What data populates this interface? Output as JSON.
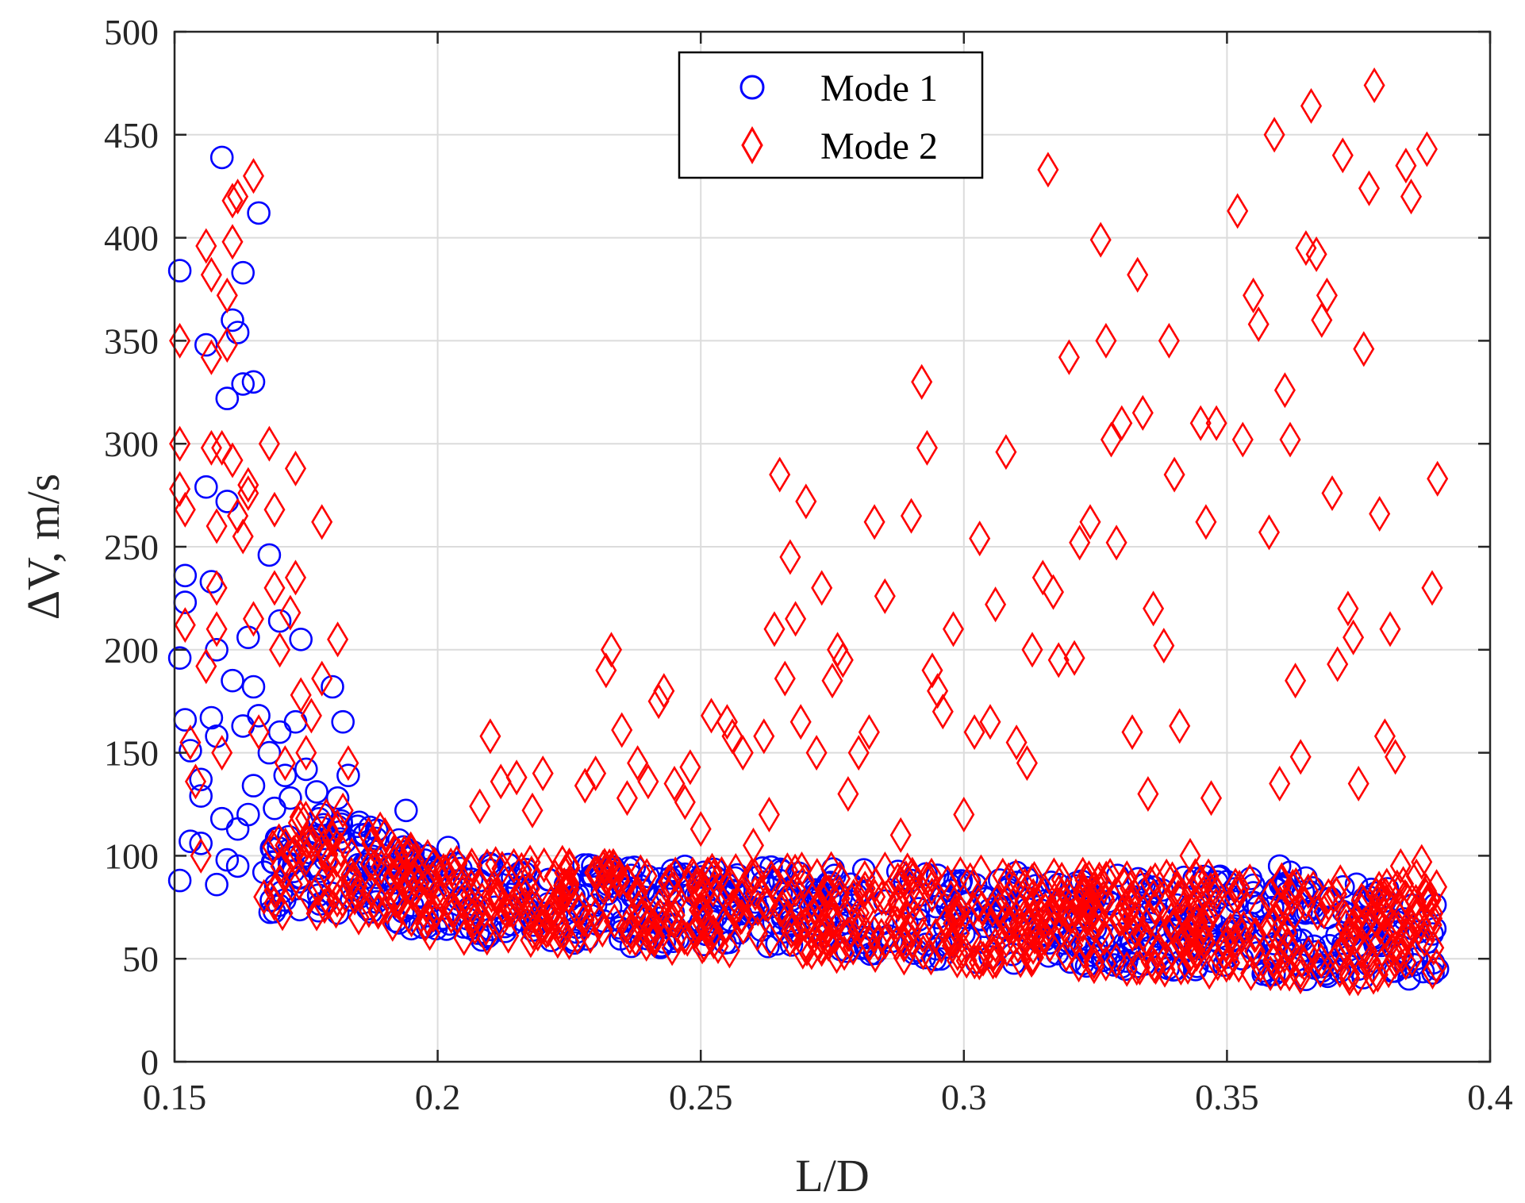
{
  "chart_data": {
    "type": "scatter",
    "title": "",
    "xlabel": "L/D",
    "ylabel": "ΔV, m/s",
    "xlim": [
      0.15,
      0.4
    ],
    "ylim": [
      0,
      500
    ],
    "xticks": [
      "0.15",
      "0.2",
      "0.25",
      "0.3",
      "0.35",
      "0.4"
    ],
    "yticks": [
      "0",
      "50",
      "100",
      "150",
      "200",
      "250",
      "300",
      "350",
      "400",
      "450",
      "500"
    ],
    "grid": true,
    "legend_position": "top-center",
    "series": [
      {
        "name": "Mode 1",
        "marker": "circle",
        "color": "#0000ff",
        "points": [
          [
            0.151,
            384
          ],
          [
            0.151,
            196
          ],
          [
            0.151,
            88
          ],
          [
            0.152,
            236
          ],
          [
            0.152,
            223
          ],
          [
            0.152,
            166
          ],
          [
            0.153,
            151
          ],
          [
            0.153,
            107
          ],
          [
            0.155,
            106
          ],
          [
            0.155,
            137
          ],
          [
            0.155,
            129
          ],
          [
            0.156,
            348
          ],
          [
            0.156,
            279
          ],
          [
            0.157,
            167
          ],
          [
            0.157,
            233
          ],
          [
            0.158,
            200
          ],
          [
            0.158,
            158
          ],
          [
            0.158,
            86
          ],
          [
            0.159,
            439
          ],
          [
            0.159,
            118
          ],
          [
            0.16,
            322
          ],
          [
            0.16,
            272
          ],
          [
            0.16,
            98
          ],
          [
            0.161,
            360
          ],
          [
            0.161,
            185
          ],
          [
            0.162,
            354
          ],
          [
            0.162,
            113
          ],
          [
            0.162,
            95
          ],
          [
            0.163,
            383
          ],
          [
            0.163,
            329
          ],
          [
            0.163,
            163
          ],
          [
            0.164,
            206
          ],
          [
            0.164,
            120
          ],
          [
            0.165,
            330
          ],
          [
            0.165,
            182
          ],
          [
            0.165,
            134
          ],
          [
            0.166,
            412
          ],
          [
            0.166,
            168
          ],
          [
            0.167,
            92
          ],
          [
            0.168,
            246
          ],
          [
            0.168,
            150
          ],
          [
            0.169,
            123
          ],
          [
            0.17,
            214
          ],
          [
            0.17,
            160
          ],
          [
            0.171,
            139
          ],
          [
            0.172,
            128
          ],
          [
            0.173,
            165
          ],
          [
            0.174,
            205
          ],
          [
            0.175,
            142
          ],
          [
            0.175,
            100
          ],
          [
            0.176,
            95
          ],
          [
            0.177,
            131
          ],
          [
            0.178,
            120
          ],
          [
            0.179,
            105
          ],
          [
            0.179,
            78
          ],
          [
            0.18,
            182
          ],
          [
            0.181,
            128
          ],
          [
            0.182,
            165
          ],
          [
            0.183,
            139
          ],
          [
            0.184,
            88
          ],
          [
            0.186,
            110
          ],
          [
            0.188,
            96
          ],
          [
            0.19,
            100
          ],
          [
            0.192,
            90
          ],
          [
            0.194,
            122
          ],
          [
            0.196,
            88
          ],
          [
            0.198,
            100
          ],
          [
            0.2,
            95
          ],
          [
            0.202,
            104
          ],
          [
            0.205,
            80
          ],
          [
            0.208,
            88
          ],
          [
            0.21,
            93
          ],
          [
            0.215,
            84
          ],
          [
            0.22,
            72
          ],
          [
            0.225,
            88
          ],
          [
            0.23,
            76
          ],
          [
            0.235,
            68
          ],
          [
            0.24,
            90
          ],
          [
            0.245,
            66
          ],
          [
            0.25,
            80
          ],
          [
            0.255,
            86
          ],
          [
            0.26,
            72
          ],
          [
            0.265,
            88
          ],
          [
            0.27,
            68
          ],
          [
            0.275,
            85
          ],
          [
            0.28,
            66
          ],
          [
            0.285,
            78
          ],
          [
            0.29,
            88
          ],
          [
            0.295,
            70
          ],
          [
            0.3,
            62
          ],
          [
            0.305,
            74
          ],
          [
            0.31,
            87
          ],
          [
            0.315,
            62
          ],
          [
            0.318,
            86
          ],
          [
            0.32,
            70
          ],
          [
            0.325,
            80
          ],
          [
            0.33,
            62
          ],
          [
            0.335,
            84
          ],
          [
            0.34,
            66
          ],
          [
            0.345,
            56
          ],
          [
            0.35,
            63
          ],
          [
            0.355,
            82
          ],
          [
            0.358,
            42
          ],
          [
            0.36,
            95
          ],
          [
            0.362,
            92
          ],
          [
            0.365,
            40
          ],
          [
            0.368,
            44
          ],
          [
            0.37,
            48
          ],
          [
            0.372,
            55
          ],
          [
            0.375,
            45
          ],
          [
            0.378,
            60
          ],
          [
            0.38,
            78
          ],
          [
            0.382,
            44
          ],
          [
            0.384,
            46
          ],
          [
            0.386,
            50
          ],
          [
            0.388,
            58
          ],
          [
            0.389,
            62
          ],
          [
            0.39,
            45
          ]
        ]
      },
      {
        "name": "Mode 2",
        "marker": "diamond",
        "color": "#ff0000",
        "points": [
          [
            0.151,
            350
          ],
          [
            0.151,
            300
          ],
          [
            0.151,
            278
          ],
          [
            0.152,
            268
          ],
          [
            0.152,
            212
          ],
          [
            0.153,
            155
          ],
          [
            0.154,
            136
          ],
          [
            0.155,
            100
          ],
          [
            0.156,
            192
          ],
          [
            0.156,
            396
          ],
          [
            0.157,
            382
          ],
          [
            0.157,
            342
          ],
          [
            0.157,
            298
          ],
          [
            0.158,
            260
          ],
          [
            0.158,
            230
          ],
          [
            0.158,
            210
          ],
          [
            0.159,
            298
          ],
          [
            0.159,
            150
          ],
          [
            0.16,
            372
          ],
          [
            0.16,
            348
          ],
          [
            0.161,
            418
          ],
          [
            0.161,
            398
          ],
          [
            0.161,
            292
          ],
          [
            0.162,
            420
          ],
          [
            0.162,
            265
          ],
          [
            0.163,
            255
          ],
          [
            0.164,
            280
          ],
          [
            0.164,
            276
          ],
          [
            0.165,
            430
          ],
          [
            0.165,
            215
          ],
          [
            0.166,
            160
          ],
          [
            0.167,
            80
          ],
          [
            0.168,
            300
          ],
          [
            0.169,
            268
          ],
          [
            0.169,
            230
          ],
          [
            0.17,
            200
          ],
          [
            0.171,
            145
          ],
          [
            0.172,
            218
          ],
          [
            0.173,
            288
          ],
          [
            0.173,
            235
          ],
          [
            0.174,
            178
          ],
          [
            0.175,
            150
          ],
          [
            0.176,
            168
          ],
          [
            0.177,
            72
          ],
          [
            0.178,
            262
          ],
          [
            0.178,
            186
          ],
          [
            0.179,
            100
          ],
          [
            0.18,
            108
          ],
          [
            0.181,
            205
          ],
          [
            0.182,
            122
          ],
          [
            0.183,
            145
          ],
          [
            0.185,
            70
          ],
          [
            0.188,
            95
          ],
          [
            0.19,
            110
          ],
          [
            0.192,
            78
          ],
          [
            0.195,
            102
          ],
          [
            0.198,
            70
          ],
          [
            0.2,
            92
          ],
          [
            0.205,
            60
          ],
          [
            0.208,
            124
          ],
          [
            0.21,
            158
          ],
          [
            0.212,
            136
          ],
          [
            0.215,
            138
          ],
          [
            0.218,
            122
          ],
          [
            0.22,
            140
          ],
          [
            0.225,
            58
          ],
          [
            0.228,
            134
          ],
          [
            0.23,
            140
          ],
          [
            0.232,
            190
          ],
          [
            0.233,
            200
          ],
          [
            0.235,
            161
          ],
          [
            0.236,
            128
          ],
          [
            0.238,
            145
          ],
          [
            0.24,
            136
          ],
          [
            0.242,
            175
          ],
          [
            0.243,
            180
          ],
          [
            0.245,
            135
          ],
          [
            0.247,
            126
          ],
          [
            0.248,
            143
          ],
          [
            0.25,
            113
          ],
          [
            0.252,
            168
          ],
          [
            0.255,
            165
          ],
          [
            0.256,
            158
          ],
          [
            0.258,
            150
          ],
          [
            0.26,
            105
          ],
          [
            0.262,
            158
          ],
          [
            0.263,
            120
          ],
          [
            0.264,
            210
          ],
          [
            0.265,
            285
          ],
          [
            0.266,
            186
          ],
          [
            0.267,
            245
          ],
          [
            0.268,
            215
          ],
          [
            0.269,
            165
          ],
          [
            0.27,
            272
          ],
          [
            0.272,
            150
          ],
          [
            0.273,
            230
          ],
          [
            0.275,
            185
          ],
          [
            0.276,
            200
          ],
          [
            0.277,
            195
          ],
          [
            0.278,
            130
          ],
          [
            0.28,
            150
          ],
          [
            0.282,
            160
          ],
          [
            0.283,
            262
          ],
          [
            0.285,
            226
          ],
          [
            0.288,
            110
          ],
          [
            0.29,
            265
          ],
          [
            0.292,
            330
          ],
          [
            0.293,
            298
          ],
          [
            0.294,
            190
          ],
          [
            0.295,
            180
          ],
          [
            0.296,
            170
          ],
          [
            0.298,
            210
          ],
          [
            0.3,
            120
          ],
          [
            0.302,
            160
          ],
          [
            0.303,
            254
          ],
          [
            0.305,
            165
          ],
          [
            0.306,
            222
          ],
          [
            0.308,
            296
          ],
          [
            0.31,
            155
          ],
          [
            0.312,
            145
          ],
          [
            0.313,
            200
          ],
          [
            0.315,
            235
          ],
          [
            0.316,
            433
          ],
          [
            0.317,
            228
          ],
          [
            0.318,
            195
          ],
          [
            0.32,
            342
          ],
          [
            0.321,
            196
          ],
          [
            0.322,
            252
          ],
          [
            0.324,
            262
          ],
          [
            0.326,
            399
          ],
          [
            0.327,
            350
          ],
          [
            0.328,
            302
          ],
          [
            0.329,
            252
          ],
          [
            0.33,
            310
          ],
          [
            0.332,
            160
          ],
          [
            0.333,
            382
          ],
          [
            0.334,
            315
          ],
          [
            0.335,
            130
          ],
          [
            0.336,
            220
          ],
          [
            0.338,
            202
          ],
          [
            0.339,
            350
          ],
          [
            0.34,
            285
          ],
          [
            0.341,
            163
          ],
          [
            0.343,
            100
          ],
          [
            0.345,
            310
          ],
          [
            0.346,
            262
          ],
          [
            0.347,
            128
          ],
          [
            0.348,
            310
          ],
          [
            0.352,
            413
          ],
          [
            0.353,
            302
          ],
          [
            0.355,
            372
          ],
          [
            0.356,
            358
          ],
          [
            0.358,
            257
          ],
          [
            0.359,
            450
          ],
          [
            0.36,
            135
          ],
          [
            0.361,
            326
          ],
          [
            0.362,
            302
          ],
          [
            0.363,
            185
          ],
          [
            0.364,
            148
          ],
          [
            0.365,
            395
          ],
          [
            0.366,
            464
          ],
          [
            0.367,
            392
          ],
          [
            0.368,
            360
          ],
          [
            0.369,
            372
          ],
          [
            0.37,
            276
          ],
          [
            0.371,
            193
          ],
          [
            0.372,
            440
          ],
          [
            0.373,
            220
          ],
          [
            0.374,
            206
          ],
          [
            0.375,
            135
          ],
          [
            0.376,
            346
          ],
          [
            0.377,
            424
          ],
          [
            0.378,
            474
          ],
          [
            0.379,
            266
          ],
          [
            0.38,
            158
          ],
          [
            0.381,
            210
          ],
          [
            0.382,
            148
          ],
          [
            0.383,
            95
          ],
          [
            0.384,
            435
          ],
          [
            0.385,
            420
          ],
          [
            0.386,
            90
          ],
          [
            0.387,
            97
          ],
          [
            0.388,
            443
          ],
          [
            0.389,
            230
          ],
          [
            0.39,
            283
          ]
        ]
      }
    ]
  }
}
